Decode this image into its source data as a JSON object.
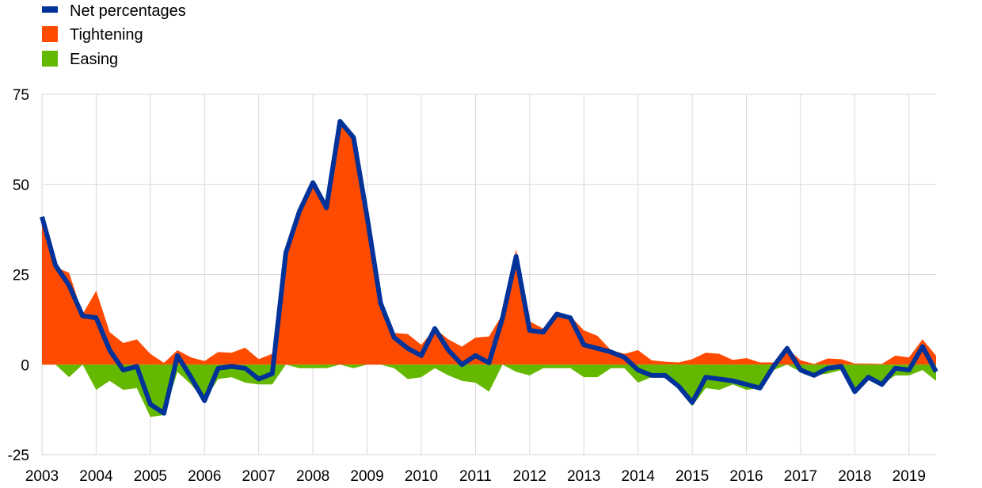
{
  "chart_data": {
    "type": "area",
    "title": "",
    "xlabel": "",
    "ylabel": "",
    "ylim": [
      -25,
      75
    ],
    "yticks": [
      75,
      50,
      25,
      0,
      -25
    ],
    "xlim": [
      2003.0,
      2019.5
    ],
    "x_ticks": [
      2003,
      2004,
      2005,
      2006,
      2007,
      2008,
      2009,
      2010,
      2011,
      2012,
      2013,
      2014,
      2015,
      2016,
      2017,
      2018,
      2019
    ],
    "x_tick_labels": [
      "2003",
      "2004",
      "2005",
      "2006",
      "2007",
      "2008",
      "2009",
      "2010",
      "2011",
      "2012",
      "2013",
      "2014",
      "2015",
      "2016",
      "2017",
      "2018",
      "2019"
    ],
    "grid": true,
    "legend_position": "top-left",
    "x": [
      2003.0,
      2003.25,
      2003.5,
      2003.75,
      2004.0,
      2004.25,
      2004.5,
      2004.75,
      2005.0,
      2005.25,
      2005.5,
      2005.75,
      2006.0,
      2006.25,
      2006.5,
      2006.75,
      2007.0,
      2007.25,
      2007.5,
      2007.75,
      2008.0,
      2008.25,
      2008.5,
      2008.75,
      2009.0,
      2009.25,
      2009.5,
      2009.75,
      2010.0,
      2010.25,
      2010.5,
      2010.75,
      2011.0,
      2011.25,
      2011.5,
      2011.75,
      2012.0,
      2012.25,
      2012.5,
      2012.75,
      2013.0,
      2013.25,
      2013.5,
      2013.75,
      2014.0,
      2014.25,
      2014.5,
      2014.75,
      2015.0,
      2015.25,
      2015.5,
      2015.75,
      2016.0,
      2016.25,
      2016.5,
      2016.75,
      2017.0,
      2017.25,
      2017.5,
      2017.75,
      2018.0,
      2018.25,
      2018.5,
      2018.75,
      2019.0,
      2019.25,
      2019.5
    ],
    "series": [
      {
        "name": "Tightening",
        "kind": "area",
        "color": "#ff4b00",
        "values": [
          41,
          27,
          25.5,
          14,
          20.5,
          9,
          6,
          7,
          3,
          0.5,
          4,
          2,
          1,
          3.5,
          3.3,
          4.7,
          1.5,
          3,
          31.5,
          43,
          51,
          44.5,
          68,
          64,
          41,
          17.5,
          8.8,
          8.5,
          5.5,
          10,
          7,
          5,
          7.5,
          7.8,
          14,
          32,
          12,
          10,
          14,
          13.5,
          9.5,
          8,
          4,
          3,
          4,
          1.2,
          0.8,
          0.6,
          1.5,
          3.3,
          3,
          1.3,
          1.8,
          0.6,
          0.6,
          4.5,
          1.2,
          0.2,
          1.7,
          1.5,
          0.3,
          0.3,
          0.2,
          2.5,
          2,
          7,
          2.5
        ]
      },
      {
        "name": "Easing",
        "kind": "area",
        "color": "#65b800",
        "values": [
          0,
          0,
          -3.5,
          0,
          -7,
          -4.5,
          -7,
          -6.5,
          -14.5,
          -14,
          -2,
          -5.5,
          -10,
          -4,
          -3.5,
          -5,
          -5.5,
          -5.5,
          0,
          -1,
          -1,
          -1,
          0,
          -1,
          0,
          0,
          -1,
          -4,
          -3.5,
          -1,
          -3,
          -4.5,
          -5,
          -7.5,
          0,
          -2,
          -3,
          -1,
          -1,
          -1,
          -3.5,
          -3.5,
          -1,
          -1,
          -5,
          -3.5,
          -2.5,
          -7,
          -11.5,
          -6.5,
          -7,
          -5.5,
          -7,
          -6.5,
          -1.5,
          0,
          -2,
          -3,
          -2.5,
          -1.5,
          -8,
          -4,
          -5.5,
          -3,
          -3,
          -1.5,
          -4.5
        ]
      },
      {
        "name": "Net percentages",
        "kind": "line",
        "color": "#003299",
        "values": [
          41,
          27.5,
          22,
          13.5,
          13,
          4,
          -1.5,
          -0.5,
          -11,
          -13.5,
          2.5,
          -3.5,
          -10,
          -1,
          -0.5,
          -1,
          -4,
          -2.5,
          31,
          42.5,
          50.5,
          43.5,
          67.5,
          63,
          41,
          17,
          7.5,
          4.5,
          2.5,
          10,
          4,
          0,
          2.5,
          0.5,
          13,
          30,
          9.5,
          9,
          14,
          13,
          5.5,
          4.5,
          3.5,
          2,
          -1.5,
          -3,
          -3,
          -6,
          -10.5,
          -3.5,
          -4,
          -4.5,
          -5.5,
          -6.5,
          -0.5,
          4.5,
          -1.5,
          -3,
          -1,
          -0.5,
          -7.5,
          -3.5,
          -5.5,
          -1,
          -1.5,
          5,
          -2
        ]
      }
    ]
  }
}
